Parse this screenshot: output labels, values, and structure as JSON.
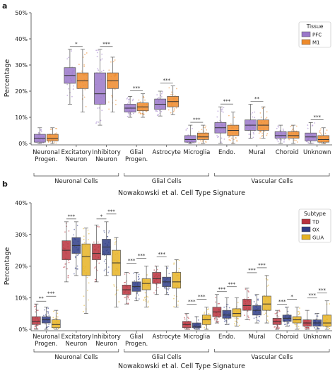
{
  "chart_data": [
    {
      "panel_label": "a",
      "type": "box",
      "ylabel": "Percentage",
      "xlabel": "Nowakowski et al. Cell Type Signature",
      "ylim": [
        0,
        50
      ],
      "yticks": [
        "0%",
        "10%",
        "20%",
        "30%",
        "40%",
        "50%"
      ],
      "grid": false,
      "legend": {
        "title": "Tissue",
        "placement": "top-right"
      },
      "categories": [
        {
          "label": [
            "Neuronal",
            "Progen."
          ],
          "sig": ""
        },
        {
          "label": [
            "Excitatory",
            "Neuron"
          ],
          "sig": "*"
        },
        {
          "label": [
            "Inhibitory",
            "Neuron"
          ],
          "sig": "***"
        },
        {
          "label": [
            "Glial",
            "Progen."
          ],
          "sig": "***"
        },
        {
          "label": [
            "Astrocyte"
          ],
          "sig": "***"
        },
        {
          "label": [
            "Microglia"
          ],
          "sig": "***"
        },
        {
          "label": [
            "Endo."
          ],
          "sig": "***"
        },
        {
          "label": [
            "Mural"
          ],
          "sig": "**"
        },
        {
          "label": [
            "Choroid"
          ],
          "sig": ""
        },
        {
          "label": [
            "Unknown"
          ],
          "sig": "***"
        }
      ],
      "groups": [
        {
          "label": "Neuronal Cells",
          "from": 0,
          "to": 2
        },
        {
          "label": "Glial Cells",
          "from": 3,
          "to": 5
        },
        {
          "label": "Vascular Cells",
          "from": 6,
          "to": 9
        }
      ],
      "series": [
        {
          "name": "PFC",
          "color": "#9a77c9",
          "boxes": [
            {
              "wl": 0,
              "q1": 0.5,
              "med": 2,
              "q3": 3.5,
              "wh": 6
            },
            {
              "wl": 15,
              "q1": 23,
              "med": 26,
              "q3": 29,
              "wh": 36
            },
            {
              "wl": 7,
              "q1": 15,
              "med": 19,
              "q3": 27,
              "wh": 36
            },
            {
              "wl": 10,
              "q1": 12,
              "med": 13.5,
              "q3": 15,
              "wh": 18
            },
            {
              "wl": 10.5,
              "q1": 13,
              "med": 15,
              "q3": 17,
              "wh": 20
            },
            {
              "wl": 0,
              "q1": 0.5,
              "med": 1.5,
              "q3": 3,
              "wh": 7
            },
            {
              "wl": 0,
              "q1": 4,
              "med": 6,
              "q3": 8,
              "wh": 14
            },
            {
              "wl": 2,
              "q1": 5,
              "med": 7,
              "q3": 9,
              "wh": 15
            },
            {
              "wl": 0,
              "q1": 2,
              "med": 3,
              "q3": 4.5,
              "wh": 7
            },
            {
              "wl": 0,
              "q1": 1,
              "med": 2.5,
              "q3": 4,
              "wh": 8
            }
          ]
        },
        {
          "name": "M1",
          "color": "#ee8a2a",
          "boxes": [
            {
              "wl": 0,
              "q1": 1,
              "med": 2,
              "q3": 3.5,
              "wh": 6
            },
            {
              "wl": 12,
              "q1": 21,
              "med": 24,
              "q3": 27,
              "wh": 36
            },
            {
              "wl": 12,
              "q1": 21,
              "med": 24,
              "q3": 27,
              "wh": 33
            },
            {
              "wl": 10,
              "q1": 12.5,
              "med": 14,
              "q3": 15.5,
              "wh": 19
            },
            {
              "wl": 11,
              "q1": 14,
              "med": 16,
              "q3": 18,
              "wh": 22
            },
            {
              "wl": 0,
              "q1": 1.5,
              "med": 2.5,
              "q3": 4,
              "wh": 7
            },
            {
              "wl": 0,
              "q1": 3,
              "med": 5,
              "q3": 7,
              "wh": 12
            },
            {
              "wl": 2,
              "q1": 5,
              "med": 7,
              "q3": 9,
              "wh": 14
            },
            {
              "wl": 0,
              "q1": 2,
              "med": 3,
              "q3": 4.5,
              "wh": 7
            },
            {
              "wl": 0,
              "q1": 0.5,
              "med": 1.5,
              "q3": 3,
              "wh": 6
            }
          ]
        }
      ]
    },
    {
      "panel_label": "b",
      "type": "box",
      "ylabel": "Percentage",
      "xlabel": "Nowakowski et al. Cell Type Signature",
      "ylim": [
        0,
        40
      ],
      "yticks": [
        "0%",
        "10%",
        "20%",
        "30%",
        "40%"
      ],
      "grid": false,
      "legend": {
        "title": "Subtype",
        "placement": "top-right"
      },
      "categories": [
        {
          "label": [
            "Neuronal",
            "Progen."
          ],
          "sig": [
            "**",
            "***"
          ]
        },
        {
          "label": [
            "Excitatory",
            "Neuron"
          ],
          "sig": [
            "***"
          ]
        },
        {
          "label": [
            "Inhibitory",
            "Neuron"
          ],
          "sig": [
            "*",
            "***"
          ]
        },
        {
          "label": [
            "Glial",
            "Progen."
          ],
          "sig": [
            "***",
            "***"
          ]
        },
        {
          "label": [
            "Astrocyte"
          ],
          "sig": [
            "***"
          ]
        },
        {
          "label": [
            "Microglia"
          ],
          "sig": [
            "***",
            "***"
          ]
        },
        {
          "label": [
            "Endo."
          ],
          "sig": [
            "***",
            "***"
          ]
        },
        {
          "label": [
            "Mural"
          ],
          "sig": [
            "***",
            "***"
          ]
        },
        {
          "label": [
            "Choroid"
          ],
          "sig": [
            "***",
            "*"
          ]
        },
        {
          "label": [
            "Unknown"
          ],
          "sig": [
            "***",
            "***"
          ]
        }
      ],
      "groups": [
        {
          "label": "Neuronal Cells",
          "from": 0,
          "to": 2
        },
        {
          "label": "Glial Cells",
          "from": 3,
          "to": 5
        },
        {
          "label": "Vascular Cells",
          "from": 6,
          "to": 9
        }
      ],
      "series": [
        {
          "name": "TD",
          "color": "#b8323d",
          "boxes": [
            {
              "wl": 0,
              "q1": 1.5,
              "med": 2.5,
              "q3": 4,
              "wh": 8
            },
            {
              "wl": 15,
              "q1": 22,
              "med": 25,
              "q3": 28,
              "wh": 34
            },
            {
              "wl": 15,
              "q1": 22,
              "med": 24,
              "q3": 27,
              "wh": 33
            },
            {
              "wl": 8,
              "q1": 11,
              "med": 12.5,
              "q3": 14,
              "wh": 18
            },
            {
              "wl": 11,
              "q1": 14.5,
              "med": 16,
              "q3": 18,
              "wh": 20
            },
            {
              "wl": 0,
              "q1": 0.5,
              "med": 1.5,
              "q3": 2.5,
              "wh": 5
            },
            {
              "wl": 2,
              "q1": 4,
              "med": 5.5,
              "q3": 7,
              "wh": 11
            },
            {
              "wl": 3,
              "q1": 6,
              "med": 7.5,
              "q3": 9.5,
              "wh": 13
            },
            {
              "wl": 0,
              "q1": 1.5,
              "med": 2.5,
              "q3": 3.5,
              "wh": 6
            },
            {
              "wl": 0,
              "q1": 1,
              "med": 2,
              "q3": 3,
              "wh": 6
            }
          ]
        },
        {
          "name": "OX",
          "color": "#2f3d86",
          "boxes": [
            {
              "wl": 0,
              "q1": 2,
              "med": 3,
              "q3": 4,
              "wh": 7
            },
            {
              "wl": 17,
              "q1": 24,
              "med": 26.5,
              "q3": 29,
              "wh": 34
            },
            {
              "wl": 17,
              "q1": 23.5,
              "med": 26,
              "q3": 28.5,
              "wh": 34
            },
            {
              "wl": 9,
              "q1": 12,
              "med": 13.5,
              "q3": 15,
              "wh": 18
            },
            {
              "wl": 11,
              "q1": 13.5,
              "med": 15,
              "q3": 16.5,
              "wh": 20
            },
            {
              "wl": 0,
              "q1": 0.5,
              "med": 1,
              "q3": 2,
              "wh": 4
            },
            {
              "wl": 1.5,
              "q1": 3.5,
              "med": 4.5,
              "q3": 6,
              "wh": 10
            },
            {
              "wl": 2,
              "q1": 4.5,
              "med": 6,
              "q3": 7.5,
              "wh": 11
            },
            {
              "wl": 1,
              "q1": 2.5,
              "med": 3.5,
              "q3": 4.5,
              "wh": 7
            },
            {
              "wl": 0,
              "q1": 1,
              "med": 2,
              "q3": 3,
              "wh": 5
            }
          ]
        },
        {
          "name": "GLIA",
          "color": "#e6b324",
          "boxes": [
            {
              "wl": 0,
              "q1": 0.5,
              "med": 1.5,
              "q3": 3,
              "wh": 6
            },
            {
              "wl": 5,
              "q1": 17,
              "med": 23,
              "q3": 27,
              "wh": 32
            },
            {
              "wl": 7,
              "q1": 17,
              "med": 21,
              "q3": 25,
              "wh": 29
            },
            {
              "wl": 7,
              "q1": 12.5,
              "med": 14.5,
              "q3": 16,
              "wh": 20
            },
            {
              "wl": 7,
              "q1": 13,
              "med": 15,
              "q3": 18,
              "wh": 22
            },
            {
              "wl": 0,
              "q1": 1.5,
              "med": 3,
              "q3": 4.5,
              "wh": 7
            },
            {
              "wl": 1,
              "q1": 4,
              "med": 5,
              "q3": 6.5,
              "wh": 10
            },
            {
              "wl": 2,
              "q1": 6,
              "med": 8,
              "q3": 10.5,
              "wh": 17
            },
            {
              "wl": 0,
              "q1": 2,
              "med": 3,
              "q3": 4,
              "wh": 7
            },
            {
              "wl": 0,
              "q1": 1,
              "med": 2,
              "q3": 4.5,
              "wh": 9
            }
          ]
        }
      ]
    }
  ]
}
